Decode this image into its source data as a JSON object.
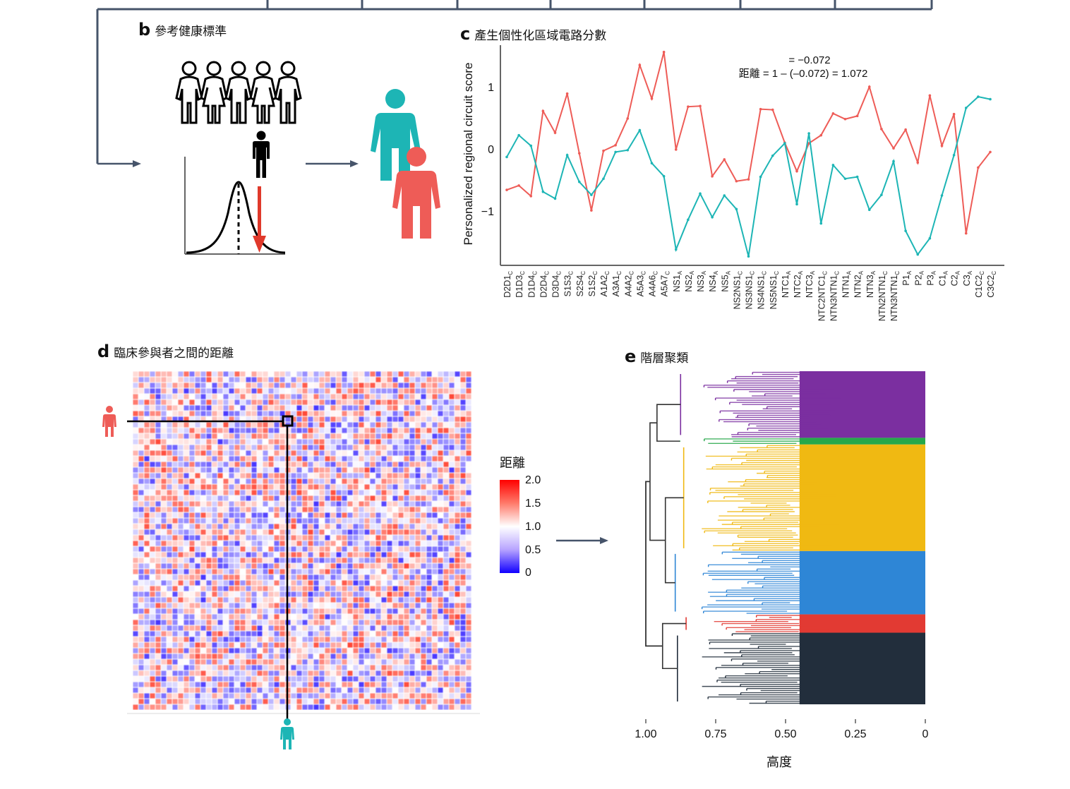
{
  "panels": {
    "b": {
      "letter": "b",
      "title": "參考健康標準"
    },
    "c": {
      "letter": "c",
      "title": "產生個性化區域電路分數"
    },
    "d": {
      "letter": "d",
      "title": "臨床參與者之間的距離"
    },
    "e": {
      "letter": "e",
      "title": "階層聚類"
    }
  },
  "icons": {
    "reference_group": "people-group-outline-icon",
    "individual": "person-black-icon",
    "distribution": "normal-distribution-curve-icon",
    "deviation_arrow": "red-down-arrow-icon",
    "participant_teal": "person-teal-icon",
    "participant_red": "person-red-icon"
  },
  "colors": {
    "red": "#ee5c57",
    "teal": "#1db5b5",
    "frame": "#46546a",
    "cluster_purple": "#7b2fa0",
    "cluster_green": "#26a84a",
    "cluster_yellow": "#f0b912",
    "cluster_blue": "#2e86d6",
    "cluster_red": "#e23a33",
    "cluster_dark": "#222e3c"
  },
  "annotation": {
    "line1": "= −0.072",
    "line2": "距離 = 1 – (–0.072) = 1.072"
  },
  "legend_d": {
    "title": "距離",
    "ticks": [
      "2.0",
      "1.5",
      "1.0",
      "0.5",
      "0"
    ],
    "range": [
      0,
      2.0
    ],
    "colors": [
      "#1100ff",
      "#ffffff",
      "#ff0000"
    ]
  },
  "chart_data": [
    {
      "type": "line",
      "title": "產生個性化區域電路分數",
      "xlabel": "",
      "ylabel": "Personalized regional circuit score",
      "ylim": [
        -1.9,
        1.65
      ],
      "yticks": [
        1,
        0,
        -1
      ],
      "ytick_labels": [
        "1",
        "0",
        "−1"
      ],
      "grid": false,
      "categories": [
        {
          "base": "D2D1",
          "sub": "C"
        },
        {
          "base": "D1D3",
          "sub": "C"
        },
        {
          "base": "D1D4",
          "sub": "C"
        },
        {
          "base": "D2D4",
          "sub": "C"
        },
        {
          "base": "D3D4",
          "sub": "C"
        },
        {
          "base": "S1S3",
          "sub": "C"
        },
        {
          "base": "S2S4",
          "sub": "C"
        },
        {
          "base": "S1S2",
          "sub": "C"
        },
        {
          "base": "A1A2",
          "sub": "C"
        },
        {
          "base": "A3A1",
          "sub": "C"
        },
        {
          "base": "A4A2",
          "sub": "C"
        },
        {
          "base": "A5A3",
          "sub": "C"
        },
        {
          "base": "A4A6",
          "sub": "C"
        },
        {
          "base": "A5A7",
          "sub": "C"
        },
        {
          "base": "NS1",
          "sub": "A"
        },
        {
          "base": "NS2",
          "sub": "A"
        },
        {
          "base": "NS3",
          "sub": "A"
        },
        {
          "base": "NS4",
          "sub": "A"
        },
        {
          "base": "NS5",
          "sub": "A"
        },
        {
          "base": "NS2NS1",
          "sub": "C"
        },
        {
          "base": "NS3NS1",
          "sub": "C"
        },
        {
          "base": "NS4NS1",
          "sub": "C"
        },
        {
          "base": "NS5NS1",
          "sub": "C"
        },
        {
          "base": "NTC1",
          "sub": "A"
        },
        {
          "base": "NTC2",
          "sub": "A"
        },
        {
          "base": "NTC3",
          "sub": "A"
        },
        {
          "base": "NTC2NTC1",
          "sub": "C"
        },
        {
          "base": "NTN3NTN1",
          "sub": "C"
        },
        {
          "base": "NTN1",
          "sub": "A"
        },
        {
          "base": "NTN2",
          "sub": "A"
        },
        {
          "base": "NTN3",
          "sub": "A"
        },
        {
          "base": "NTN2NTN1",
          "sub": "C"
        },
        {
          "base": "NTN3NTN1",
          "sub": "C"
        },
        {
          "base": "P1",
          "sub": "A"
        },
        {
          "base": "P2",
          "sub": "A"
        },
        {
          "base": "P3",
          "sub": "A"
        },
        {
          "base": "C1",
          "sub": "A"
        },
        {
          "base": "C2",
          "sub": "A"
        },
        {
          "base": "C3",
          "sub": "A"
        },
        {
          "base": "C1C2",
          "sub": "C"
        },
        {
          "base": "C3C2",
          "sub": "C"
        }
      ],
      "series": [
        {
          "name": "participant-red",
          "color": "#ee5c57",
          "values": [
            -0.66,
            -0.59,
            -0.76,
            0.61,
            0.26,
            0.89,
            -0.07,
            -0.99,
            -0.03,
            0.06,
            0.49,
            1.35,
            0.81,
            1.56,
            -0.01,
            0.68,
            0.69,
            -0.44,
            -0.17,
            -0.52,
            -0.49,
            0.64,
            0.63,
            0.1,
            -0.36,
            0.09,
            0.22,
            0.57,
            0.48,
            0.53,
            1.0,
            0.32,
            0.01,
            0.31,
            -0.22,
            0.86,
            0.05,
            0.56,
            -1.36,
            -0.3,
            -0.05
          ]
        },
        {
          "name": "participant-teal",
          "color": "#1db5b5",
          "values": [
            -0.13,
            0.22,
            0.05,
            -0.69,
            -0.8,
            -0.1,
            -0.53,
            -0.74,
            -0.48,
            -0.05,
            -0.02,
            0.3,
            -0.23,
            -0.44,
            -1.62,
            -1.14,
            -0.72,
            -1.1,
            -0.75,
            -0.97,
            -1.73,
            -0.45,
            -0.11,
            0.09,
            -0.89,
            0.25,
            -1.2,
            -0.26,
            -0.48,
            -0.45,
            -0.98,
            -0.74,
            -0.2,
            -1.32,
            -1.7,
            -1.44,
            -0.75,
            -0.1,
            0.66,
            0.84,
            0.8
          ]
        }
      ]
    },
    {
      "type": "heatmap",
      "title": "臨床參與者之間的距離",
      "colorbar_title": "距離",
      "value_range": [
        0,
        2.0
      ],
      "colorbar_ticks": [
        2.0,
        1.5,
        1.0,
        0.5,
        0
      ],
      "note": "participant x participant distance matrix; cells appear randomly distributed between ~0.3 and ~1.8"
    },
    {
      "type": "dendrogram",
      "title": "階層聚類",
      "xlabel": "高度",
      "xlim": [
        1.0,
        0
      ],
      "xticks": [
        1.0,
        0.75,
        0.5,
        0.25,
        0
      ],
      "xtick_labels": [
        "1.00",
        "0.75",
        "0.50",
        "0.25",
        "0"
      ],
      "clusters": [
        {
          "name": "purple",
          "color": "#7b2fa0",
          "share": 0.2
        },
        {
          "name": "green",
          "color": "#26a84a",
          "share": 0.02
        },
        {
          "name": "yellow",
          "color": "#f0b912",
          "share": 0.32
        },
        {
          "name": "blue",
          "color": "#2e86d6",
          "share": 0.19
        },
        {
          "name": "red",
          "color": "#e23a33",
          "share": 0.055
        },
        {
          "name": "dark",
          "color": "#222e3c",
          "share": 0.215
        }
      ]
    }
  ]
}
